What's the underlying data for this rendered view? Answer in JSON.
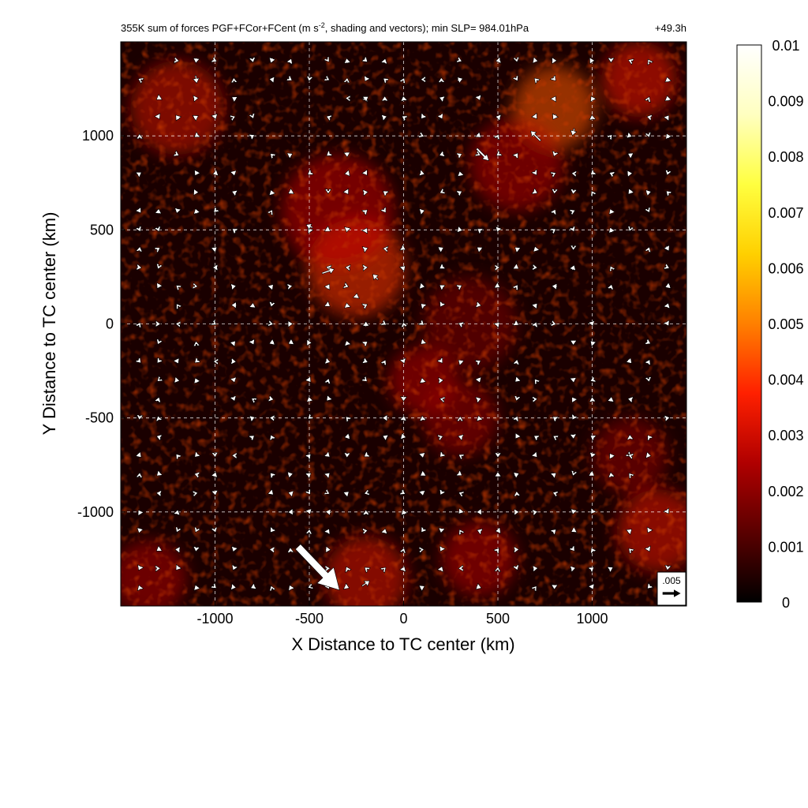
{
  "chart_data": {
    "type": "heatmap",
    "title_main": "355K sum of forces PGF+FCor+FCent (m s",
    "title_sup": "-2",
    "title_rest": ", shading and vectors); min SLP= 984.01hPa",
    "time_label": "+49.3h",
    "xlabel": "X Distance to TC center (km)",
    "ylabel": "Y Distance to TC center (km)",
    "xlim": [
      -1500,
      1500
    ],
    "ylim": [
      -1500,
      1500
    ],
    "x_ticks": [
      -1000,
      -500,
      0,
      500,
      1000
    ],
    "x_tick_labels": [
      "-1000",
      "-500",
      "0",
      "500",
      "1000"
    ],
    "y_ticks": [
      -1000,
      -500,
      0,
      500,
      1000
    ],
    "y_tick_labels": [
      "-1000",
      "-500",
      "0",
      "500",
      "1000"
    ],
    "grid": true,
    "colorbar": {
      "min": 0,
      "max": 0.01,
      "ticks": [
        0,
        0.001,
        0.002,
        0.003,
        0.004,
        0.005,
        0.006,
        0.007,
        0.008,
        0.009,
        0.01
      ],
      "tick_labels": [
        "0",
        "0.001",
        "0.002",
        "0.003",
        "0.004",
        "0.005",
        "0.006",
        "0.007",
        "0.008",
        "0.009",
        "0.01"
      ],
      "colors": [
        "#000000",
        "#5a0000",
        "#b00000",
        "#ff2000",
        "#ff8000",
        "#ffd000",
        "#ffff40",
        "#ffffc0",
        "#ffffff"
      ]
    },
    "reference_vector": {
      "label": ".005",
      "magnitude": 0.005
    },
    "hotspots": [
      {
        "x": -250,
        "y": 300,
        "r": 260,
        "v": 0.004
      },
      {
        "x": -350,
        "y": 600,
        "r": 300,
        "v": 0.0028
      },
      {
        "x": 800,
        "y": 1150,
        "r": 220,
        "v": 0.0045
      },
      {
        "x": 600,
        "y": 850,
        "r": 250,
        "v": 0.0026
      },
      {
        "x": -1200,
        "y": 1150,
        "r": 250,
        "v": 0.003
      },
      {
        "x": 1250,
        "y": 1300,
        "r": 200,
        "v": 0.0035
      },
      {
        "x": 100,
        "y": -300,
        "r": 180,
        "v": 0.0026
      },
      {
        "x": 300,
        "y": -500,
        "r": 200,
        "v": 0.0022
      },
      {
        "x": -200,
        "y": -1350,
        "r": 220,
        "v": 0.0032
      },
      {
        "x": 400,
        "y": -1250,
        "r": 200,
        "v": 0.0026
      },
      {
        "x": 1350,
        "y": -1100,
        "r": 220,
        "v": 0.0033
      },
      {
        "x": -1350,
        "y": -1350,
        "r": 200,
        "v": 0.0025
      },
      {
        "x": 350,
        "y": 0,
        "r": 250,
        "v": 0.0018
      },
      {
        "x": 1200,
        "y": -700,
        "r": 200,
        "v": 0.002
      }
    ],
    "vectors_large": [
      {
        "x": -400,
        "y": 280,
        "u": 0.0035,
        "v": 0.0012
      },
      {
        "x": -150,
        "y": 250,
        "u": -0.0015,
        "v": 0.0015
      },
      {
        "x": -500,
        "y": 520,
        "u": -0.0018,
        "v": 0.0008
      },
      {
        "x": 700,
        "y": 1000,
        "u": -0.0028,
        "v": 0.0028
      },
      {
        "x": 420,
        "y": 900,
        "u": 0.0035,
        "v": -0.0035
      },
      {
        "x": 900,
        "y": 1020,
        "u": -0.0005,
        "v": -0.002
      },
      {
        "x": -1100,
        "y": 1300,
        "u": 0.0003,
        "v": -0.0022
      },
      {
        "x": -200,
        "y": -1380,
        "u": 0.0022,
        "v": 0.0015
      },
      {
        "x": -450,
        "y": -1300,
        "u": 0.012,
        "v": -0.0125
      },
      {
        "x": -200,
        "y": 1200,
        "u": 0.0014,
        "v": 0.001
      },
      {
        "x": 300,
        "y": 1300,
        "u": 0.0015,
        "v": 0.0005
      },
      {
        "x": 800,
        "y": 1100,
        "u": -0.0008,
        "v": -0.0014
      },
      {
        "x": -1300,
        "y": -1200,
        "u": -0.0012,
        "v": -0.0008
      },
      {
        "x": 1200,
        "y": -700,
        "u": -0.001,
        "v": 0.0003
      },
      {
        "x": -250,
        "y": 150,
        "u": 0.0002,
        "v": 0.0014
      },
      {
        "x": -200,
        "y": 0,
        "u": 0.0,
        "v": 0.0015
      }
    ],
    "coastline_note": ""
  }
}
